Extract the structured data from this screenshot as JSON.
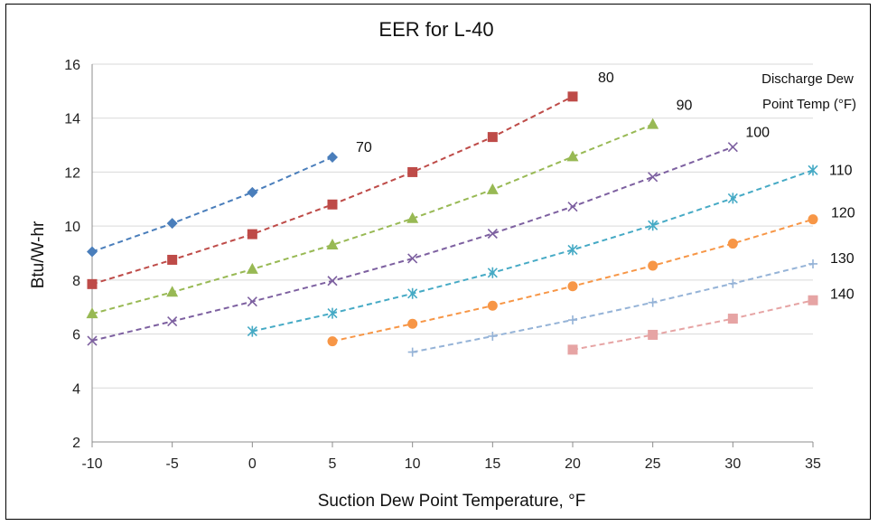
{
  "chart_data": {
    "type": "line",
    "title": "EER for L-40",
    "xlabel": "Suction Dew Point Temperature, °F",
    "ylabel": "Btu/W-hr",
    "xlim": [
      -10,
      35
    ],
    "ylim": [
      2,
      16
    ],
    "xticks": [
      -10,
      -5,
      0,
      5,
      10,
      15,
      20,
      25,
      30,
      35
    ],
    "yticks": [
      2,
      4,
      6,
      8,
      10,
      12,
      14,
      16
    ],
    "grid": "horizontal",
    "legend_title": [
      "Discharge Dew",
      "Point Temp (°F)"
    ],
    "line_style": "dashed",
    "series": [
      {
        "name": "70",
        "color": "#4a7ebb",
        "marker": "diamond",
        "x": [
          -10,
          -5,
          0,
          5
        ],
        "y": [
          9.05,
          10.1,
          11.25,
          12.55
        ]
      },
      {
        "name": "80",
        "color": "#be4b48",
        "marker": "square",
        "x": [
          -10,
          -5,
          0,
          5,
          10,
          15,
          20
        ],
        "y": [
          7.85,
          8.75,
          9.7,
          10.8,
          12.0,
          13.3,
          14.8
        ]
      },
      {
        "name": "90",
        "color": "#98b954",
        "marker": "triangle",
        "x": [
          -10,
          -5,
          0,
          5,
          10,
          15,
          20,
          25
        ],
        "y": [
          6.75,
          7.55,
          8.4,
          9.3,
          10.28,
          11.35,
          12.57,
          13.77
        ]
      },
      {
        "name": "100",
        "color": "#7d60a0",
        "marker": "x",
        "x": [
          -10,
          -5,
          0,
          5,
          10,
          15,
          20,
          25,
          30
        ],
        "y": [
          5.75,
          6.47,
          7.2,
          7.97,
          8.8,
          9.72,
          10.72,
          11.82,
          12.93
        ]
      },
      {
        "name": "110",
        "color": "#46aac5",
        "marker": "star",
        "x": [
          0,
          5,
          10,
          15,
          20,
          25,
          30,
          35
        ],
        "y": [
          6.1,
          6.77,
          7.5,
          8.27,
          9.12,
          10.03,
          11.03,
          12.07
        ]
      },
      {
        "name": "120",
        "color": "#f79646",
        "marker": "circle",
        "x": [
          5,
          10,
          15,
          20,
          25,
          30,
          35
        ],
        "y": [
          5.73,
          6.38,
          7.05,
          7.77,
          8.53,
          9.35,
          10.25
        ]
      },
      {
        "name": "130",
        "color": "#95b3d7",
        "marker": "plus",
        "x": [
          10,
          15,
          20,
          25,
          30,
          35
        ],
        "y": [
          5.33,
          5.92,
          6.52,
          7.17,
          7.87,
          8.6
        ]
      },
      {
        "name": "140",
        "color": "#e6a4a4",
        "marker": "square",
        "x": [
          20,
          25,
          30,
          35
        ],
        "y": [
          5.42,
          5.97,
          6.57,
          7.25
        ]
      }
    ]
  }
}
